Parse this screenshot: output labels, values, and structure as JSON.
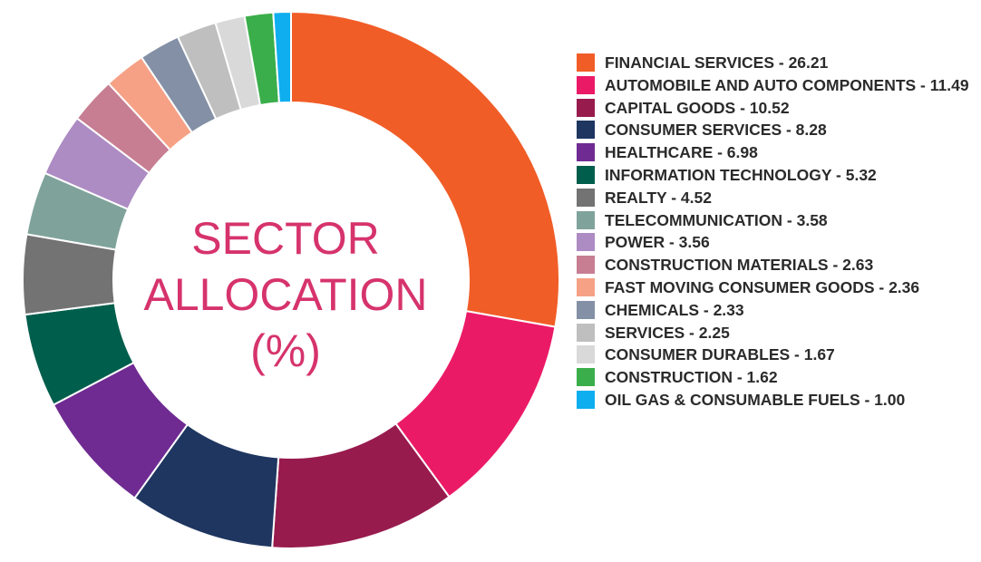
{
  "title": {
    "line1": "SECTOR",
    "line2": "ALLOCATION",
    "line3": "(%)"
  },
  "chart_data": {
    "type": "pie",
    "donut": true,
    "start_angle": "12 o'clock, clockwise",
    "legend_position": "right",
    "title": "SECTOR ALLOCATION (%)",
    "slices": [
      {
        "label": "FINANCIAL SERVICES",
        "value": 26.21,
        "color": "#f15d27"
      },
      {
        "label": "AUTOMOBILE AND AUTO COMPONENTS",
        "value": 11.49,
        "color": "#eb1a66"
      },
      {
        "label": "CAPITAL GOODS",
        "value": 10.52,
        "color": "#981b4e"
      },
      {
        "label": "CONSUMER SERVICES",
        "value": 8.28,
        "color": "#1e3660"
      },
      {
        "label": "HEALTHCARE",
        "value": 6.98,
        "color": "#6f2b92"
      },
      {
        "label": "INFORMATION TECHNOLOGY",
        "value": 5.32,
        "color": "#005e4c"
      },
      {
        "label": "REALTY",
        "value": 4.52,
        "color": "#737373"
      },
      {
        "label": "TELECOMMUNICATION",
        "value": 3.58,
        "color": "#7fa39b"
      },
      {
        "label": "POWER",
        "value": 3.56,
        "color": "#ad8bc3"
      },
      {
        "label": "CONSTRUCTION MATERIALS",
        "value": 2.63,
        "color": "#c77e93"
      },
      {
        "label": "FAST MOVING CONSUMER GOODS",
        "value": 2.36,
        "color": "#f6a185"
      },
      {
        "label": "CHEMICALS",
        "value": 2.33,
        "color": "#8390a6"
      },
      {
        "label": "SERVICES",
        "value": 2.25,
        "color": "#bfbfbf"
      },
      {
        "label": "CONSUMER DURABLES",
        "value": 1.67,
        "color": "#d9d9d9"
      },
      {
        "label": "CONSTRUCTION",
        "value": 1.62,
        "color": "#3aae4a"
      },
      {
        "label": "OIL GAS & CONSUMABLE FUELS",
        "value": 1.0,
        "color": "#0eaeef"
      }
    ]
  },
  "legend_items": [
    {
      "text": "FINANCIAL SERVICES - 26.21",
      "color": "#f15d27"
    },
    {
      "text": "AUTOMOBILE AND AUTO COMPONENTS - 11.49",
      "color": "#eb1a66"
    },
    {
      "text": "CAPITAL GOODS - 10.52",
      "color": "#981b4e"
    },
    {
      "text": "CONSUMER SERVICES - 8.28",
      "color": "#1e3660"
    },
    {
      "text": "HEALTHCARE - 6.98",
      "color": "#6f2b92"
    },
    {
      "text": "INFORMATION TECHNOLOGY - 5.32",
      "color": "#005e4c"
    },
    {
      "text": "REALTY - 4.52",
      "color": "#737373"
    },
    {
      "text": "TELECOMMUNICATION - 3.58",
      "color": "#7fa39b"
    },
    {
      "text": "POWER - 3.56",
      "color": "#ad8bc3"
    },
    {
      "text": "CONSTRUCTION MATERIALS - 2.63",
      "color": "#c77e93"
    },
    {
      "text": "FAST MOVING CONSUMER GOODS - 2.36",
      "color": "#f6a185"
    },
    {
      "text": "CHEMICALS - 2.33",
      "color": "#8390a6"
    },
    {
      "text": "SERVICES - 2.25",
      "color": "#bfbfbf"
    },
    {
      "text": "CONSUMER DURABLES - 1.67",
      "color": "#d9d9d9"
    },
    {
      "text": "CONSTRUCTION - 1.62",
      "color": "#3aae4a"
    },
    {
      "text": "OIL GAS & CONSUMABLE FUELS - 1.00",
      "color": "#0eaeef"
    }
  ],
  "colors": {
    "title": "#d6336c",
    "legend_text": "#2b2b2b",
    "background": "#ffffff"
  }
}
